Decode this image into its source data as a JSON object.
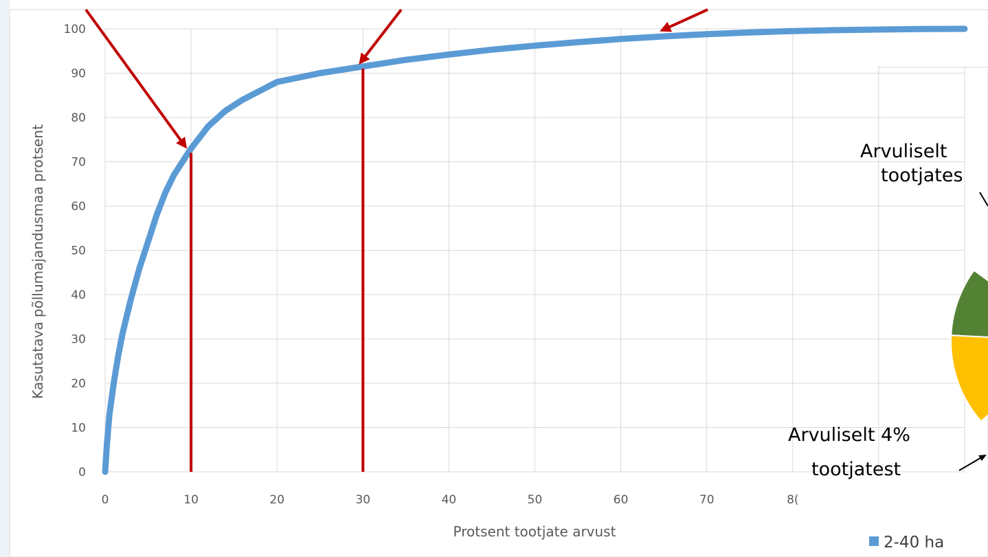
{
  "chart_data": {
    "type": "line",
    "title": "",
    "xlabel": "Protsent tootjate arvust",
    "ylabel": "Kasutatava põllumajandusmaa protsent",
    "xlim": [
      0,
      100
    ],
    "ylim": [
      0,
      100
    ],
    "x_ticks": [
      "0",
      "10",
      "20",
      "30",
      "40",
      "50",
      "60",
      "70",
      "8("
    ],
    "y_ticks": [
      "0",
      "10",
      "20",
      "30",
      "40",
      "50",
      "60",
      "70",
      "80",
      "90",
      "100"
    ],
    "grid": true,
    "series": [
      {
        "color": "#5b9bd5",
        "x": [
          0,
          0.2,
          0.5,
          1,
          1.5,
          2,
          3,
          4,
          5,
          6,
          7,
          8,
          9,
          10,
          12,
          14,
          16,
          18,
          20,
          25,
          30,
          35,
          40,
          45,
          50,
          55,
          60,
          65,
          70,
          75,
          80,
          85,
          90,
          95,
          100
        ],
        "y": [
          0,
          6,
          13,
          20,
          26,
          31,
          39,
          46,
          52,
          58,
          63,
          67,
          70,
          73,
          78,
          81.5,
          84,
          86,
          88,
          90,
          91.5,
          93,
          94.2,
          95.3,
          96.2,
          97,
          97.7,
          98.3,
          98.8,
          99.2,
          99.5,
          99.7,
          99.85,
          99.95,
          100
        ]
      }
    ],
    "markers": [
      {
        "x": 10,
        "y": 72,
        "color": "#c00000"
      },
      {
        "x": 30,
        "y": 91,
        "color": "#c00000"
      }
    ],
    "arrow_targets": [
      {
        "x": 10,
        "y": 72
      },
      {
        "x": 30,
        "y": 91
      },
      {
        "x": 65,
        "y": 98.5
      }
    ]
  },
  "pie_fragment": {
    "colors": [
      "#548235",
      "#ffc000"
    ],
    "label_top_line1": "Arvuliselt",
    "label_top_line2": "tootjates",
    "label_bottom_line1": "Arvuliselt 4%",
    "label_bottom_line2": "tootjatest",
    "legend_color": "#5b9bd5",
    "legend_label": "2-40 ha"
  }
}
